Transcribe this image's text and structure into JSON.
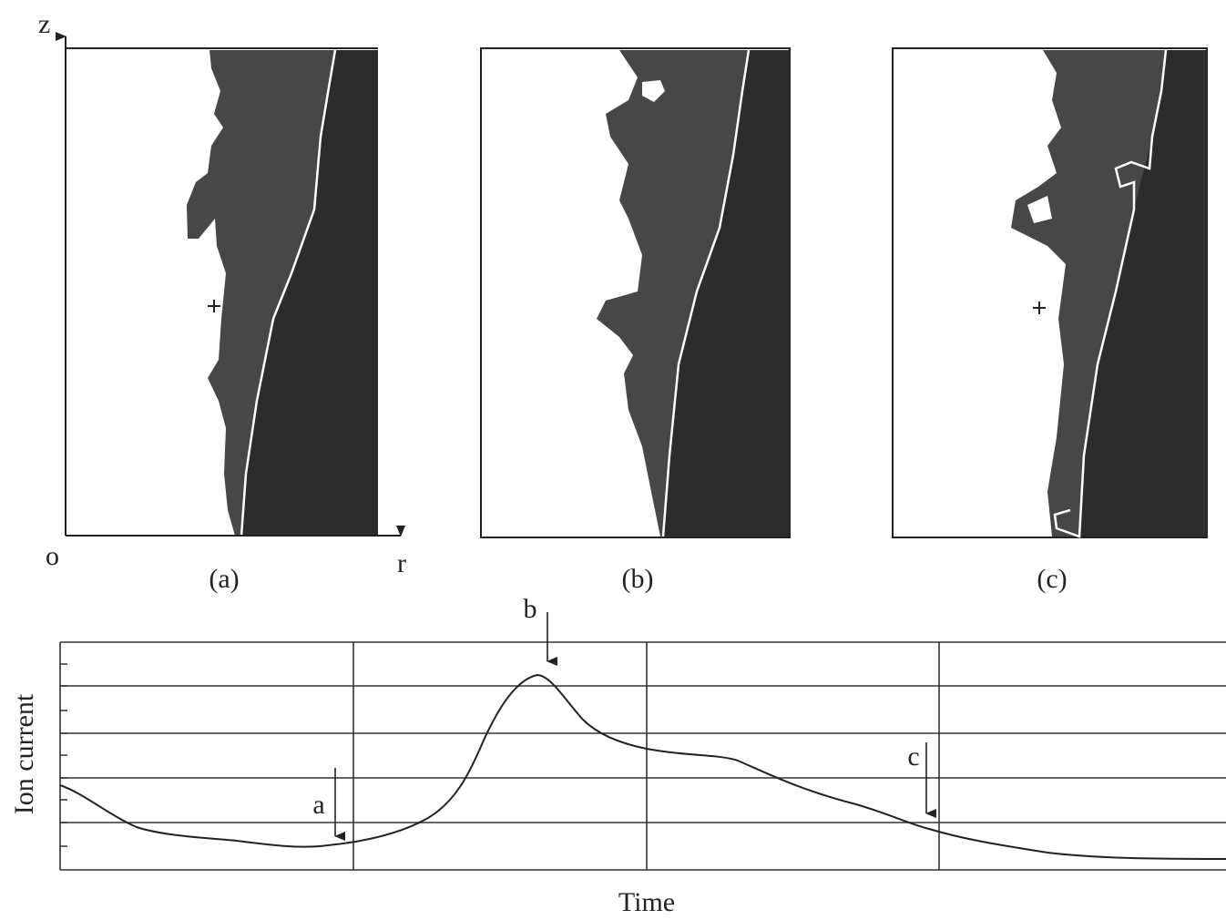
{
  "axes": {
    "z": "z",
    "origin": "o",
    "r": "r"
  },
  "panels": [
    {
      "label": "(a)"
    },
    {
      "label": "(b)"
    },
    {
      "label": "(c)"
    }
  ],
  "plot": {
    "y_label": "Ion current",
    "x_label": "Time",
    "markers": [
      "a",
      "b",
      "c"
    ]
  }
}
